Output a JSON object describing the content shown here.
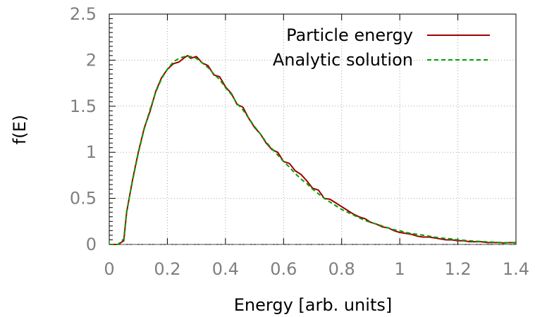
{
  "chart_data": {
    "type": "line",
    "title": "",
    "xlabel": "Energy [arb. units]",
    "ylabel": "f(E)",
    "xlim": [
      0,
      1.4
    ],
    "ylim": [
      0,
      2.5
    ],
    "x_ticks": [
      "0",
      "0.2",
      "0.4",
      "0.6",
      "0.8",
      "1",
      "1.2",
      "1.4"
    ],
    "y_ticks": [
      "0",
      "0.5",
      "1",
      "1.5",
      "2",
      "2.5"
    ],
    "grid": true,
    "legend_position": "top-right",
    "series": [
      {
        "name": "Particle energy",
        "color": "#a00000",
        "style": "solid",
        "x": [
          0,
          0.03,
          0.05,
          0.06,
          0.08,
          0.1,
          0.12,
          0.14,
          0.16,
          0.18,
          0.2,
          0.22,
          0.24,
          0.26,
          0.27,
          0.28,
          0.3,
          0.32,
          0.34,
          0.36,
          0.38,
          0.4,
          0.42,
          0.44,
          0.46,
          0.48,
          0.5,
          0.52,
          0.54,
          0.56,
          0.58,
          0.6,
          0.62,
          0.64,
          0.66,
          0.68,
          0.7,
          0.72,
          0.74,
          0.76,
          0.78,
          0.8,
          0.82,
          0.84,
          0.86,
          0.88,
          0.9,
          0.92,
          0.94,
          0.96,
          0.98,
          1.0,
          1.02,
          1.04,
          1.06,
          1.08,
          1.1,
          1.12,
          1.14,
          1.16,
          1.18,
          1.2,
          1.22,
          1.24,
          1.26,
          1.28,
          1.3,
          1.32,
          1.34,
          1.36,
          1.38,
          1.4
        ],
        "y": [
          0,
          0,
          0.04,
          0.35,
          0.7,
          1.0,
          1.26,
          1.44,
          1.66,
          1.81,
          1.9,
          1.96,
          1.98,
          2.03,
          2.05,
          2.02,
          2.04,
          1.97,
          1.94,
          1.84,
          1.82,
          1.71,
          1.64,
          1.52,
          1.49,
          1.37,
          1.27,
          1.2,
          1.1,
          1.03,
          1.0,
          0.9,
          0.88,
          0.8,
          0.76,
          0.69,
          0.61,
          0.59,
          0.5,
          0.49,
          0.45,
          0.41,
          0.37,
          0.33,
          0.3,
          0.28,
          0.24,
          0.22,
          0.19,
          0.18,
          0.15,
          0.13,
          0.12,
          0.11,
          0.09,
          0.08,
          0.08,
          0.07,
          0.06,
          0.05,
          0.05,
          0.04,
          0.04,
          0.03,
          0.03,
          0.03,
          0.02,
          0.02,
          0.02,
          0.015,
          0.02,
          0.02
        ]
      },
      {
        "name": "Analytic solution",
        "color": "#00a000",
        "style": "dashed",
        "x": [
          0,
          0.03,
          0.05,
          0.06,
          0.08,
          0.1,
          0.12,
          0.14,
          0.16,
          0.18,
          0.2,
          0.22,
          0.24,
          0.26,
          0.28,
          0.3,
          0.32,
          0.34,
          0.36,
          0.38,
          0.4,
          0.42,
          0.44,
          0.46,
          0.48,
          0.5,
          0.52,
          0.54,
          0.56,
          0.58,
          0.6,
          0.62,
          0.64,
          0.66,
          0.68,
          0.7,
          0.72,
          0.74,
          0.76,
          0.78,
          0.8,
          0.82,
          0.84,
          0.86,
          0.88,
          0.9,
          0.92,
          0.94,
          0.96,
          0.98,
          1.0,
          1.02,
          1.04,
          1.06,
          1.08,
          1.1,
          1.12,
          1.14,
          1.16,
          1.18,
          1.2,
          1.22,
          1.24,
          1.26,
          1.28,
          1.3,
          1.32,
          1.34,
          1.36,
          1.38,
          1.4
        ],
        "y": [
          0,
          0,
          0.06,
          0.36,
          0.69,
          0.99,
          1.25,
          1.46,
          1.65,
          1.8,
          1.9,
          1.98,
          2.02,
          2.04,
          2.04,
          2.02,
          1.97,
          1.92,
          1.85,
          1.79,
          1.7,
          1.63,
          1.53,
          1.46,
          1.37,
          1.28,
          1.2,
          1.11,
          1.04,
          0.97,
          0.9,
          0.84,
          0.77,
          0.71,
          0.66,
          0.6,
          0.55,
          0.5,
          0.46,
          0.42,
          0.38,
          0.35,
          0.32,
          0.29,
          0.26,
          0.24,
          0.22,
          0.2,
          0.18,
          0.16,
          0.15,
          0.13,
          0.12,
          0.11,
          0.1,
          0.09,
          0.08,
          0.07,
          0.065,
          0.06,
          0.05,
          0.045,
          0.04,
          0.035,
          0.032,
          0.028,
          0.025,
          0.022,
          0.02,
          0.018,
          0.016
        ]
      }
    ]
  }
}
